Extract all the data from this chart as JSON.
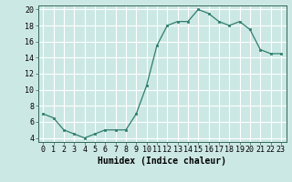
{
  "x": [
    0,
    1,
    2,
    3,
    4,
    5,
    6,
    7,
    8,
    9,
    10,
    11,
    12,
    13,
    14,
    15,
    16,
    17,
    18,
    19,
    20,
    21,
    22,
    23
  ],
  "y": [
    7,
    6.5,
    5,
    4.5,
    4,
    4.5,
    5,
    5,
    5,
    7,
    10.5,
    15.5,
    18,
    18.5,
    18.5,
    20,
    19.5,
    18.5,
    18,
    18.5,
    17.5,
    15,
    14.5,
    14.5
  ],
  "line_color": "#2e7d6e",
  "marker_color": "#2e7d6e",
  "bg_color": "#cce8e4",
  "grid_color": "#ffffff",
  "xlabel": "Humidex (Indice chaleur)",
  "xlim": [
    -0.5,
    23.5
  ],
  "ylim": [
    3.5,
    20.5
  ],
  "yticks": [
    4,
    6,
    8,
    10,
    12,
    14,
    16,
    18,
    20
  ],
  "xticks": [
    0,
    1,
    2,
    3,
    4,
    5,
    6,
    7,
    8,
    9,
    10,
    11,
    12,
    13,
    14,
    15,
    16,
    17,
    18,
    19,
    20,
    21,
    22,
    23
  ],
  "tick_fontsize": 6,
  "xlabel_fontsize": 7
}
